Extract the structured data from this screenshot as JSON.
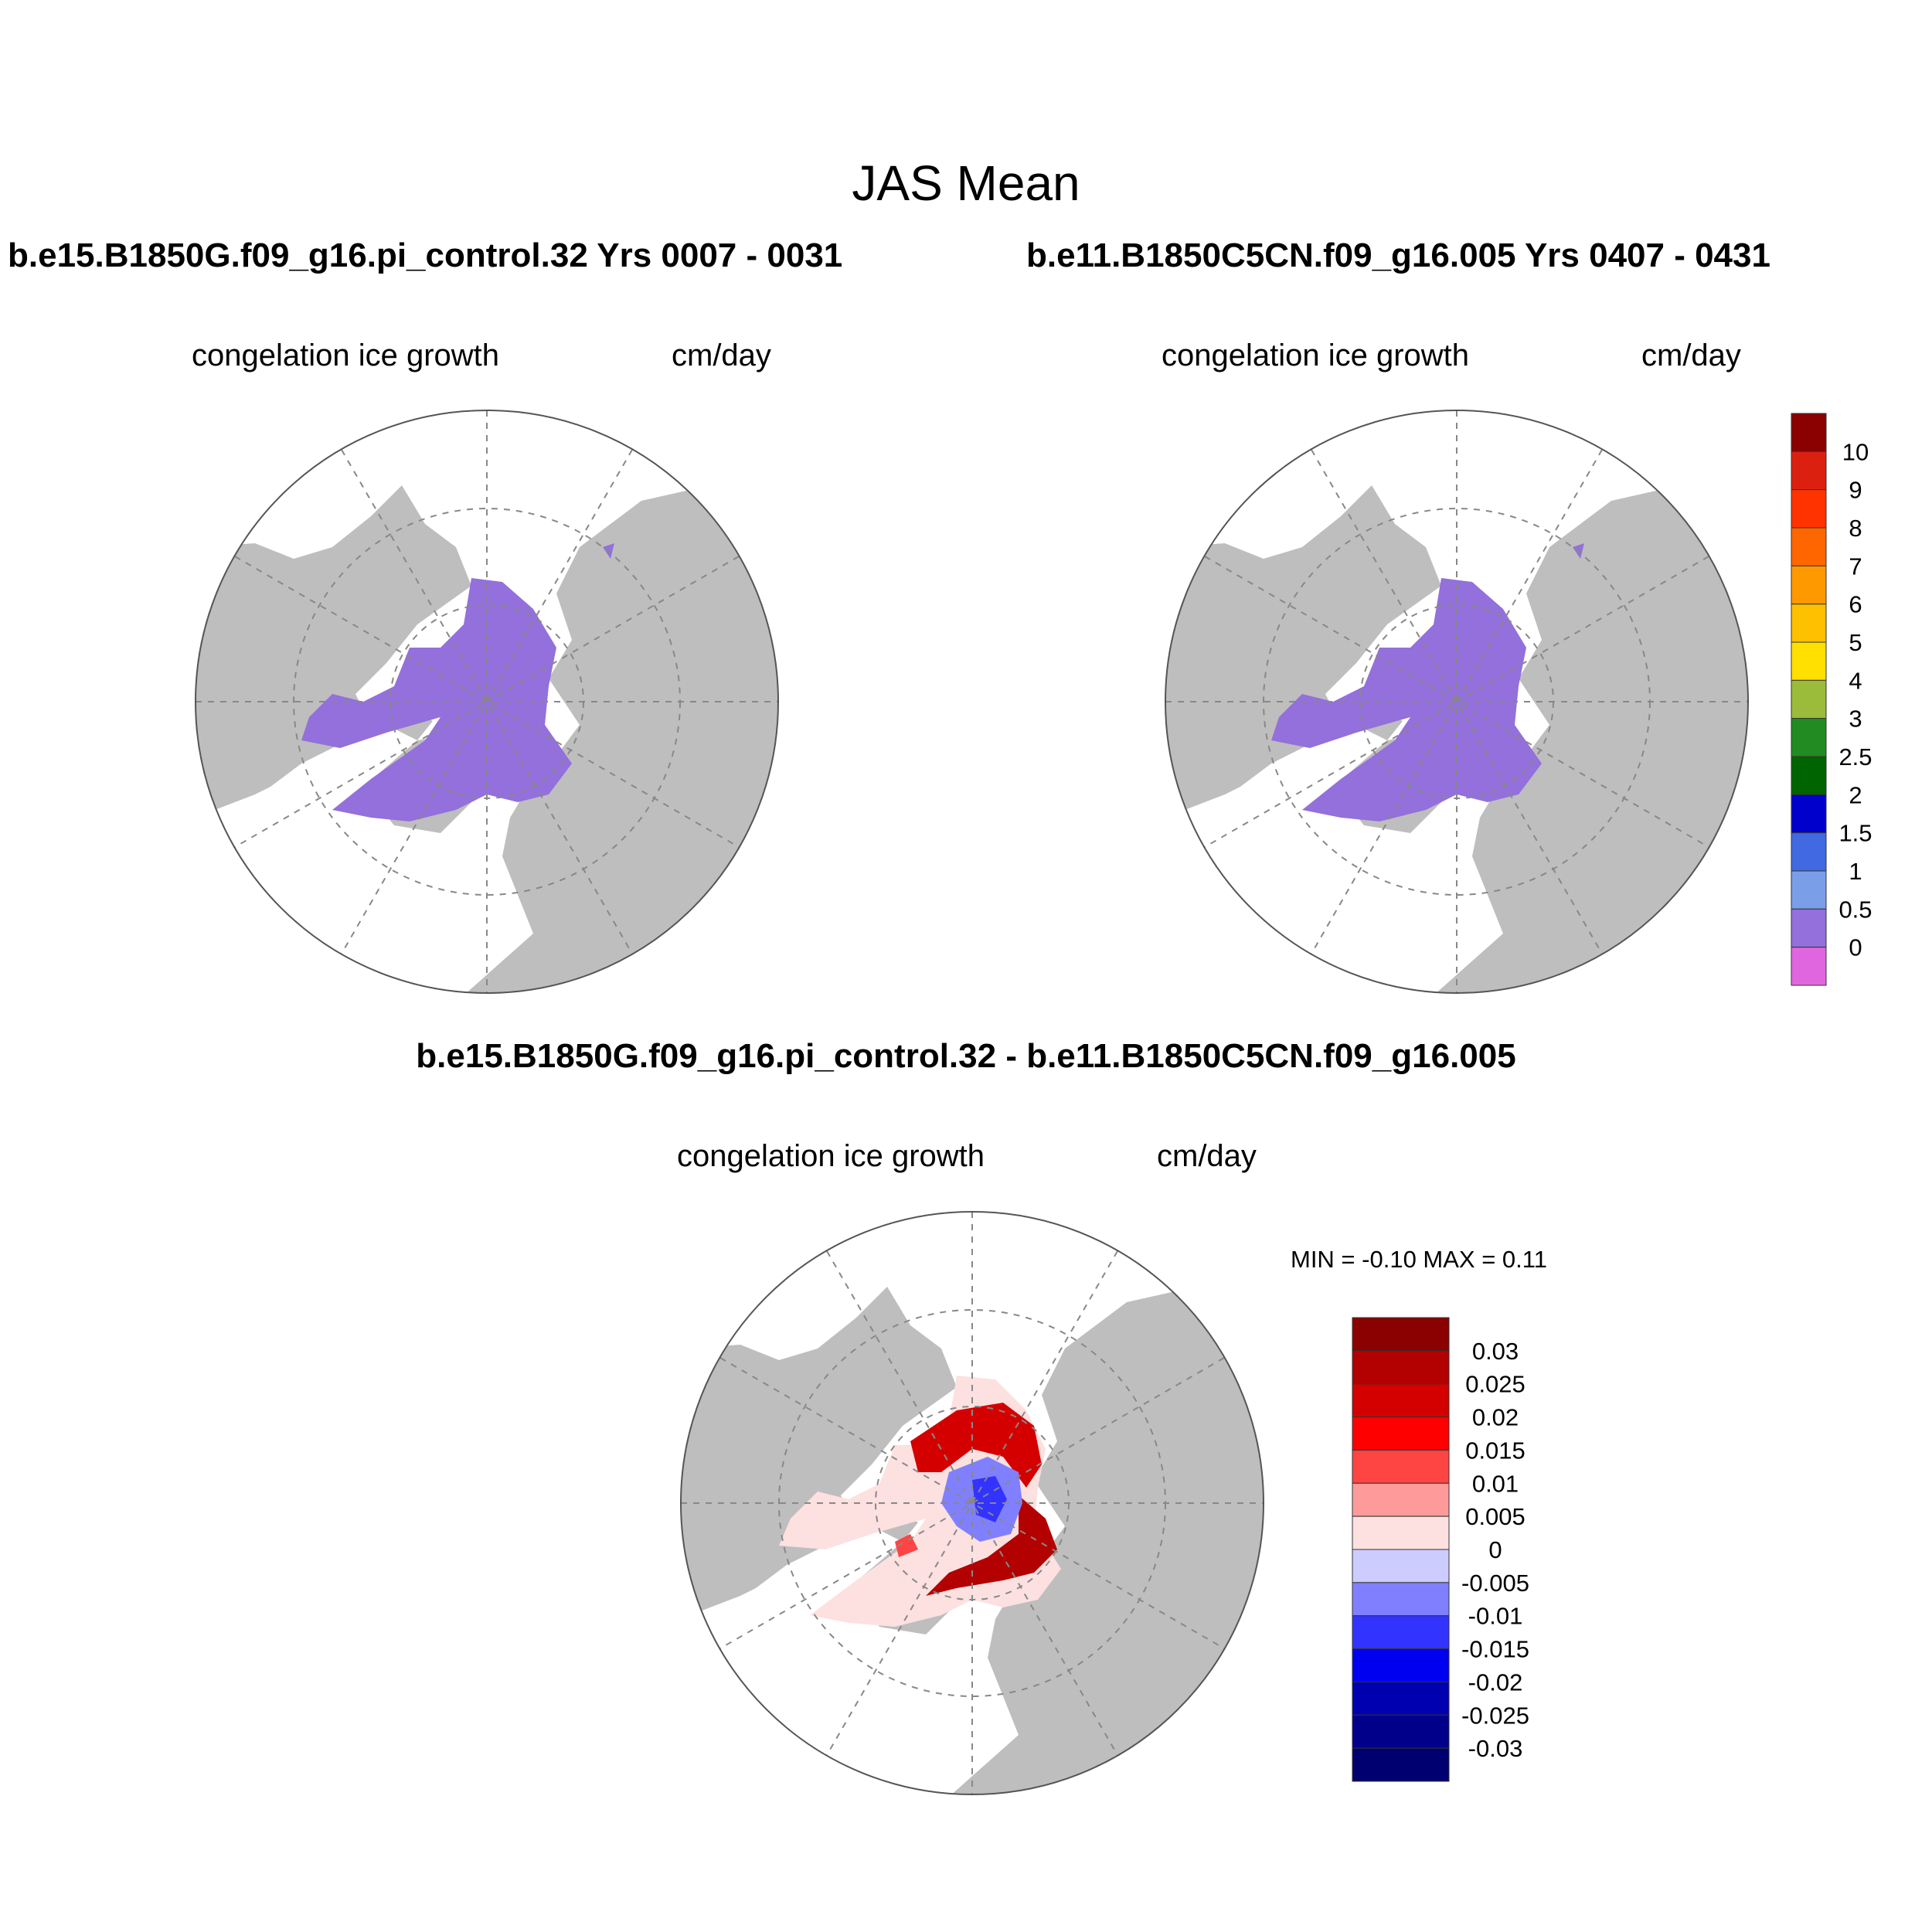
{
  "figure": {
    "title": "JAS Mean",
    "panels": [
      {
        "case_title": "b.e15.B1850G.f09_g16.pi_control.32  Yrs 0007 - 0031",
        "variable": "congelation ice growth",
        "units": "cm/day"
      },
      {
        "case_title": "b.e11.B1850C5CN.f09_g16.005  Yrs 0407 - 0431",
        "variable": "congelation ice growth",
        "units": "cm/day"
      }
    ],
    "difference": {
      "title": "b.e15.B1850G.f09_g16.pi_control.32 - b.e11.B1850C5CN.f09_g16.005",
      "variable": "congelation ice growth",
      "units": "cm/day",
      "minmax": "MIN =  -0.10 MAX =   0.11"
    }
  },
  "chart_data": [
    {
      "type": "heatmap",
      "projection": "north polar stereographic",
      "panel": "b.e15.B1850G.f09_g16.pi_control.32  Yrs 0007 - 0031",
      "field": "congelation ice growth",
      "units": "cm/day",
      "dominant_bin": "0 - 0.5"
    },
    {
      "type": "heatmap",
      "projection": "north polar stereographic",
      "panel": "b.e11.B1850C5CN.f09_g16.005  Yrs 0407 - 0431",
      "field": "congelation ice growth",
      "units": "cm/day",
      "dominant_bin": "0 - 0.5"
    },
    {
      "type": "heatmap",
      "projection": "north polar stereographic",
      "panel": "difference",
      "field": "congelation ice growth",
      "units": "cm/day",
      "min": -0.1,
      "max": 0.11
    }
  ],
  "colorbar_top": {
    "labels": [
      "10",
      "9",
      "8",
      "7",
      "6",
      "5",
      "4",
      "3",
      "2.5",
      "2",
      "1.5",
      "1",
      "0.5",
      "0"
    ],
    "colors": [
      "#8b0000",
      "#dc2010",
      "#ff3300",
      "#ff6600",
      "#ff9900",
      "#ffc000",
      "#ffe000",
      "#9bbb3a",
      "#228b22",
      "#006400",
      "#0000cd",
      "#4169e1",
      "#7b9ee8",
      "#9370db",
      "#e066e0"
    ]
  },
  "colorbar_diff": {
    "labels": [
      "0.03",
      "0.025",
      "0.02",
      "0.015",
      "0.01",
      "0.005",
      "0",
      "-0.005",
      "-0.01",
      "-0.015",
      "-0.02",
      "-0.025",
      "-0.03"
    ],
    "colors": [
      "#8b0000",
      "#b30000",
      "#d40000",
      "#ff0000",
      "#ff4444",
      "#ff9a9a",
      "#fde0e0",
      "#ccccff",
      "#8080ff",
      "#3333ff",
      "#0000f0",
      "#0000b0",
      "#00008b",
      "#000070"
    ]
  },
  "colors": {
    "land": "#bebebe",
    "ice_low": "#9370db",
    "ocean": "#ffffff"
  }
}
